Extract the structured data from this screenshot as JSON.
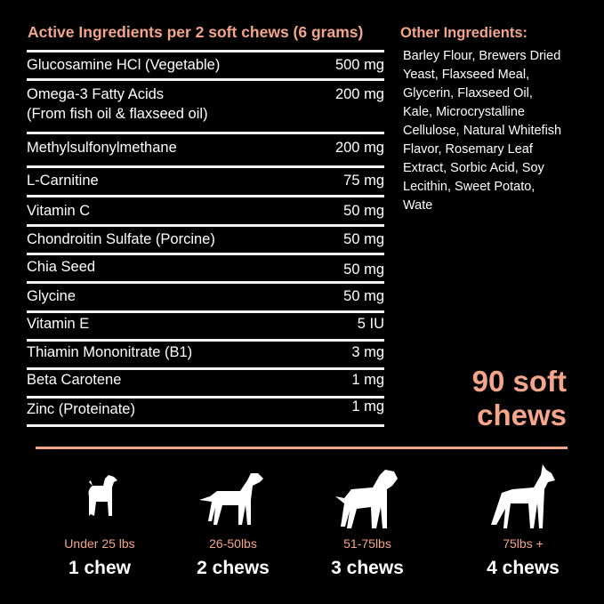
{
  "active": {
    "title": "Active Ingredients per 2 soft chews (6 grams)",
    "rows": [
      {
        "name": "Glucosamine HCl (Vegetable)",
        "amount": "500 mg"
      },
      {
        "name": "Omega-3 Fatty Acids",
        "name2": "(From fish oil & flaxseed oil)",
        "amount": "200 mg"
      },
      {
        "name": "Methylsulfonylmethane",
        "amount": "200 mg"
      },
      {
        "name": "L-Carnitine",
        "amount": "75 mg"
      },
      {
        "name": "Vitamin C",
        "amount": "50 mg"
      },
      {
        "name": "Chondroitin Sulfate (Porcine)",
        "amount": "50 mg"
      },
      {
        "name": "Chia Seed",
        "amount": "50 mg"
      },
      {
        "name": "Glycine",
        "amount": "50 mg"
      },
      {
        "name": "Vitamin E",
        "amount": "5 IU"
      },
      {
        "name": "Thiamin Mononitrate (B1)",
        "amount": "3 mg"
      },
      {
        "name": "Beta Carotene",
        "amount": "1 mg"
      },
      {
        "name": "Zinc (Proteinate)",
        "amount": "1 mg"
      }
    ]
  },
  "other": {
    "title": "Other Ingredients:",
    "lines": [
      "Barley Flour, Brewers Dried",
      "Yeast, Flaxseed Meal,",
      "Glycerin, Flaxseed Oil,",
      "Kale, Microcrystalline",
      "Cellulose, Natural Whitefish",
      "Flavor, Rosemary Leaf",
      "Extract, Sorbic Acid, Soy",
      "Lecithin, Sweet Potato,",
      "Wate"
    ]
  },
  "count": {
    "line1": "90 soft",
    "line2": "chews"
  },
  "dosing": [
    {
      "icon": "small-dog-icon",
      "range": "Under 25 lbs",
      "chews": "1 chew"
    },
    {
      "icon": "medium-dog-icon",
      "range": "26-50lbs",
      "chews": "2 chews"
    },
    {
      "icon": "large-dog-icon",
      "range": "51-75lbs",
      "chews": "3 chews"
    },
    {
      "icon": "giant-dog-icon",
      "range": "75lbs +",
      "chews": "4 chews"
    }
  ],
  "colors": {
    "accent": "#f4a58a",
    "background": "#000000",
    "text": "#ffffff"
  }
}
